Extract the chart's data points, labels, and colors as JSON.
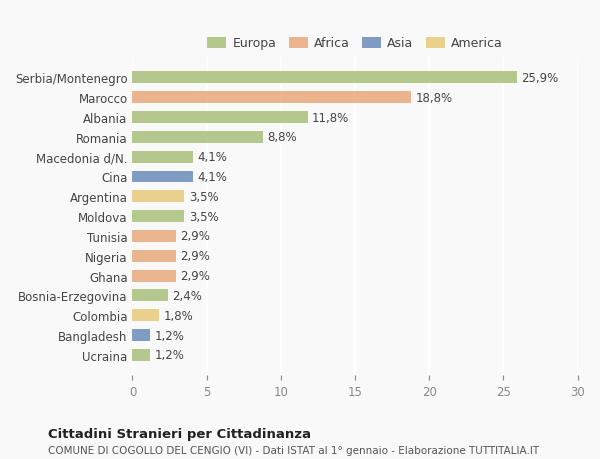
{
  "categories": [
    "Serbia/Montenegro",
    "Marocco",
    "Albania",
    "Romania",
    "Macedonia d/N.",
    "Cina",
    "Argentina",
    "Moldova",
    "Tunisia",
    "Nigeria",
    "Ghana",
    "Bosnia-Erzegovina",
    "Colombia",
    "Bangladesh",
    "Ucraina"
  ],
  "values": [
    25.9,
    18.8,
    11.8,
    8.8,
    4.1,
    4.1,
    3.5,
    3.5,
    2.9,
    2.9,
    2.9,
    2.4,
    1.8,
    1.2,
    1.2
  ],
  "labels": [
    "25,9%",
    "18,8%",
    "11,8%",
    "8,8%",
    "4,1%",
    "4,1%",
    "3,5%",
    "3,5%",
    "2,9%",
    "2,9%",
    "2,9%",
    "2,4%",
    "1,8%",
    "1,2%",
    "1,2%"
  ],
  "colors": [
    "#a8c07a",
    "#e8a87c",
    "#a8c07a",
    "#a8c07a",
    "#a8c07a",
    "#6b8cba",
    "#e8c97a",
    "#a8c07a",
    "#e8a87c",
    "#e8a87c",
    "#e8a87c",
    "#a8c07a",
    "#e8c97a",
    "#6b8cba",
    "#a8c07a"
  ],
  "legend_labels": [
    "Europa",
    "Africa",
    "Asia",
    "America"
  ],
  "legend_colors": [
    "#a8c07a",
    "#e8a87c",
    "#6b8cba",
    "#e8c97a"
  ],
  "xlim": [
    0,
    30
  ],
  "xticks": [
    0,
    5,
    10,
    15,
    20,
    25,
    30
  ],
  "title": "Cittadini Stranieri per Cittadinanza",
  "subtitle": "COMUNE DI COGOLLO DEL CENGIO (VI) - Dati ISTAT al 1° gennaio - Elaborazione TUTTITALIA.IT",
  "background_color": "#f9f9f9",
  "grid_color": "#ffffff",
  "bar_alpha": 0.85
}
